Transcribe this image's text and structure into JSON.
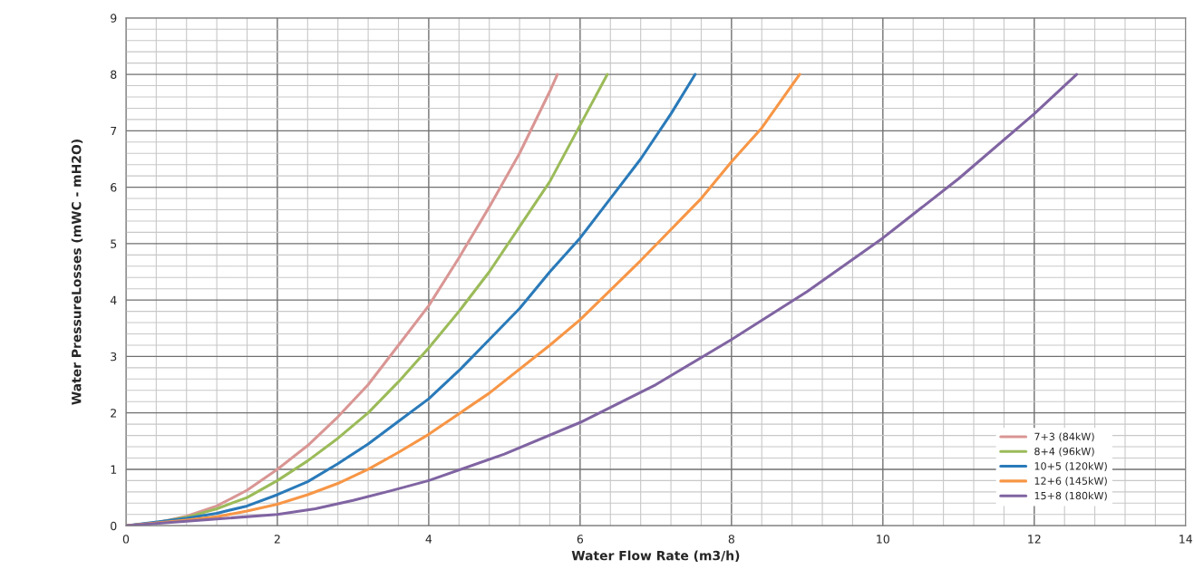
{
  "chart_data": {
    "type": "line",
    "xlabel": "Water Flow Rate (m3/h)",
    "ylabel": "Water PressureLosses (mWC - mH2O)",
    "xlim": [
      0,
      14
    ],
    "xticks": [
      0,
      2,
      4,
      6,
      8,
      10,
      12,
      14
    ],
    "ylim": [
      0,
      9
    ],
    "yticks": [
      0,
      1,
      2,
      3,
      4,
      5,
      6,
      7,
      8,
      9
    ],
    "grid": true,
    "legend": "bottom right",
    "marker": "none",
    "line_style": "solid",
    "series": [
      {
        "name": "7+3 (84kW)",
        "color": "#d99694",
        "x": [
          0,
          0.4,
          0.8,
          1.2,
          1.6,
          2.0,
          2.4,
          2.8,
          3.2,
          3.6,
          4.0,
          4.4,
          4.8,
          5.2,
          5.6,
          5.7
        ],
        "values": [
          0,
          0.05,
          0.17,
          0.35,
          0.63,
          1.0,
          1.42,
          1.93,
          2.5,
          3.2,
          3.9,
          4.75,
          5.65,
          6.6,
          7.7,
          8.0
        ]
      },
      {
        "name": "8+4 (96kW)",
        "color": "#9bbb59",
        "x": [
          0,
          0.4,
          0.8,
          1.2,
          1.6,
          2.0,
          2.4,
          2.8,
          3.2,
          3.6,
          4.0,
          4.4,
          4.8,
          5.2,
          5.6,
          6.0,
          6.36
        ],
        "values": [
          0,
          0.05,
          0.15,
          0.3,
          0.5,
          0.8,
          1.15,
          1.55,
          2.0,
          2.55,
          3.15,
          3.8,
          4.5,
          5.3,
          6.1,
          7.1,
          8.0
        ]
      },
      {
        "name": "10+5 (120kW)",
        "color": "#2a7ab9",
        "x": [
          0,
          0.8,
          1.2,
          1.6,
          2.0,
          2.4,
          2.8,
          3.2,
          3.6,
          4.0,
          4.4,
          4.8,
          5.2,
          5.6,
          6.0,
          6.4,
          6.8,
          7.2,
          7.52
        ],
        "values": [
          0,
          0.13,
          0.22,
          0.35,
          0.55,
          0.78,
          1.1,
          1.45,
          1.85,
          2.25,
          2.75,
          3.3,
          3.85,
          4.5,
          5.1,
          5.8,
          6.5,
          7.3,
          8.0
        ]
      },
      {
        "name": "12+6 (145kW)",
        "color": "#f79646",
        "x": [
          0,
          0.8,
          1.2,
          1.6,
          2.0,
          2.4,
          2.8,
          3.2,
          3.6,
          4.0,
          4.8,
          5.6,
          6.0,
          6.8,
          7.6,
          8.0,
          8.4,
          8.9
        ],
        "values": [
          0,
          0.1,
          0.16,
          0.26,
          0.38,
          0.55,
          0.75,
          1.0,
          1.3,
          1.62,
          2.35,
          3.2,
          3.65,
          4.7,
          5.8,
          6.45,
          7.05,
          8.0
        ]
      },
      {
        "name": "15+8 (180kW)",
        "color": "#8064a2",
        "x": [
          0,
          1,
          2,
          2.5,
          3,
          3.5,
          4,
          5,
          6,
          7,
          8,
          9,
          10,
          11,
          12,
          12.56
        ],
        "values": [
          0,
          0.1,
          0.2,
          0.3,
          0.45,
          0.62,
          0.8,
          1.27,
          1.83,
          2.5,
          3.3,
          4.15,
          5.1,
          6.15,
          7.3,
          8.0
        ]
      }
    ]
  }
}
